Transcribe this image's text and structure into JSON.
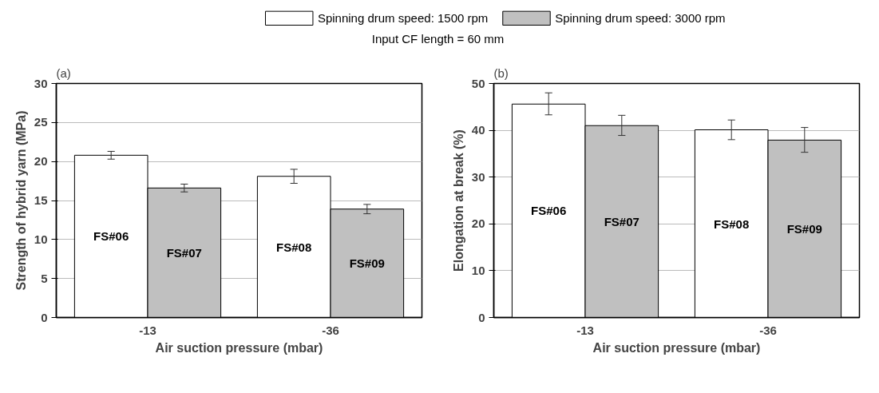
{
  "chart_data": [
    {
      "type": "bar",
      "title": "(a)",
      "subtitle": "Input CF length = 60 mm",
      "xlabel": "Air suction pressure (mbar)",
      "ylabel": "Strength of hybrid yarn (MPa)",
      "categories": [
        "-13",
        "-36"
      ],
      "series": [
        {
          "name": "Spinning drum speed: 1500 rpm",
          "color": "#ffffff",
          "values": [
            20.8,
            18.1
          ],
          "errors": [
            0.5,
            0.9
          ]
        },
        {
          "name": "Spinning drum speed: 3000 rpm",
          "color": "#c0c0c0",
          "values": [
            16.6,
            13.9
          ],
          "errors": [
            0.5,
            0.6
          ]
        }
      ],
      "annotations": [
        "FS#06",
        "FS#07",
        "FS#08",
        "FS#09"
      ],
      "ylim": [
        0,
        30
      ],
      "yticks": [
        0,
        5,
        10,
        15,
        20,
        25,
        30
      ],
      "grid": "y",
      "legend": "top"
    },
    {
      "type": "bar",
      "title": "(b)",
      "xlabel": "Air suction pressure (mbar)",
      "ylabel": "Elongation at break (%)",
      "categories": [
        "-13",
        "-36"
      ],
      "series": [
        {
          "color": "#ffffff",
          "values": [
            45.6,
            40.1
          ],
          "errors": [
            [
              43.3,
              48.0
            ],
            [
              38.0,
              42.2
            ]
          ]
        },
        {
          "color": "#c0c0c0",
          "values": [
            41.0,
            37.9
          ],
          "errors": [
            [
              38.9,
              43.2
            ],
            [
              35.3,
              40.6
            ]
          ]
        }
      ],
      "annotations": [
        "FS#06",
        "FS#07",
        "FS#08",
        "FS#09"
      ],
      "ylim": [
        0,
        50
      ],
      "yticks": [
        0,
        10,
        20,
        30,
        40,
        50
      ],
      "grid": "y"
    }
  ]
}
